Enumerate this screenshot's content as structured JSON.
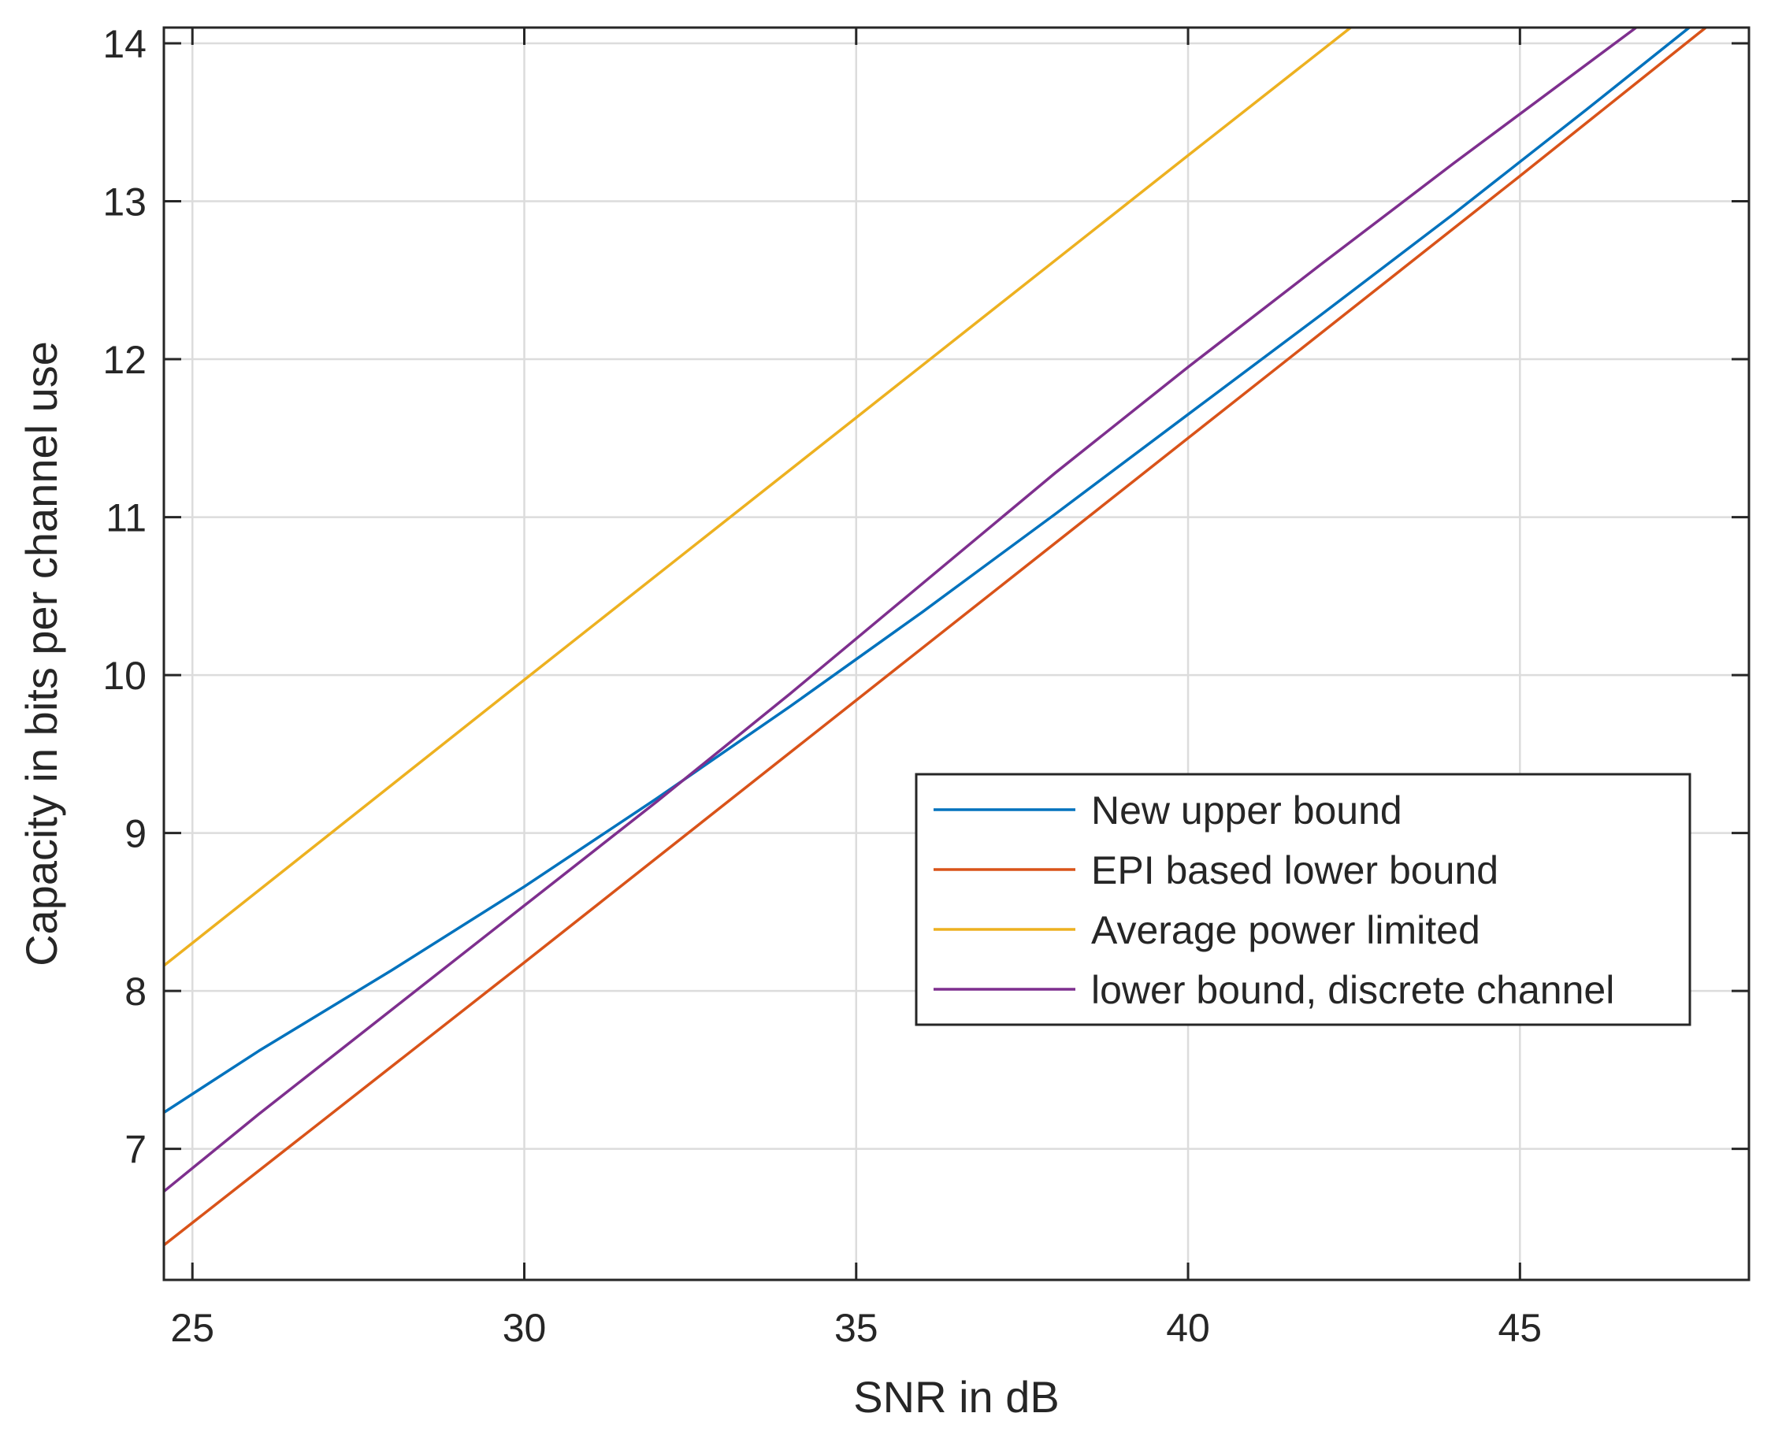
{
  "chart_data": {
    "type": "line",
    "title": "",
    "xlabel": "SNR in dB",
    "ylabel": "Capacity in bits per channel use",
    "xlim": [
      24.57,
      48.45
    ],
    "ylim": [
      6.17,
      14.1
    ],
    "xticks": [
      25,
      30,
      35,
      40,
      45
    ],
    "yticks": [
      7,
      8,
      9,
      10,
      11,
      12,
      13,
      14
    ],
    "grid": true,
    "legend_position": "lower-right",
    "series": [
      {
        "name": "New upper bound",
        "color": "#0072BD",
        "points": [
          [
            24.57,
            7.23
          ],
          [
            26,
            7.62
          ],
          [
            28,
            8.13
          ],
          [
            30,
            8.66
          ],
          [
            32,
            9.22
          ],
          [
            34,
            9.8
          ],
          [
            36,
            10.4
          ],
          [
            38,
            11.02
          ],
          [
            40,
            11.65
          ],
          [
            42,
            12.28
          ],
          [
            44,
            12.92
          ],
          [
            46,
            13.58
          ],
          [
            47.55,
            14.1
          ]
        ]
      },
      {
        "name": "EPI based lower bound",
        "color": "#D95319",
        "points": [
          [
            24.57,
            6.39
          ],
          [
            30,
            8.18
          ],
          [
            35,
            9.84
          ],
          [
            40,
            11.5
          ],
          [
            45,
            13.16
          ],
          [
            47.8,
            14.1
          ]
        ]
      },
      {
        "name": "Average power limited",
        "color": "#EDB120",
        "points": [
          [
            24.57,
            8.16
          ],
          [
            30,
            9.97
          ],
          [
            35,
            11.63
          ],
          [
            40,
            13.29
          ],
          [
            42.45,
            14.1
          ]
        ]
      },
      {
        "name": "lower bound, discrete channel",
        "color": "#7E2F8E",
        "points": [
          [
            24.57,
            6.73
          ],
          [
            26,
            7.22
          ],
          [
            28,
            7.88
          ],
          [
            30,
            8.54
          ],
          [
            32,
            9.2
          ],
          [
            34,
            9.88
          ],
          [
            36,
            10.58
          ],
          [
            38,
            11.28
          ],
          [
            40,
            11.95
          ],
          [
            42,
            12.6
          ],
          [
            44,
            13.24
          ],
          [
            46.75,
            14.1
          ]
        ]
      }
    ]
  }
}
